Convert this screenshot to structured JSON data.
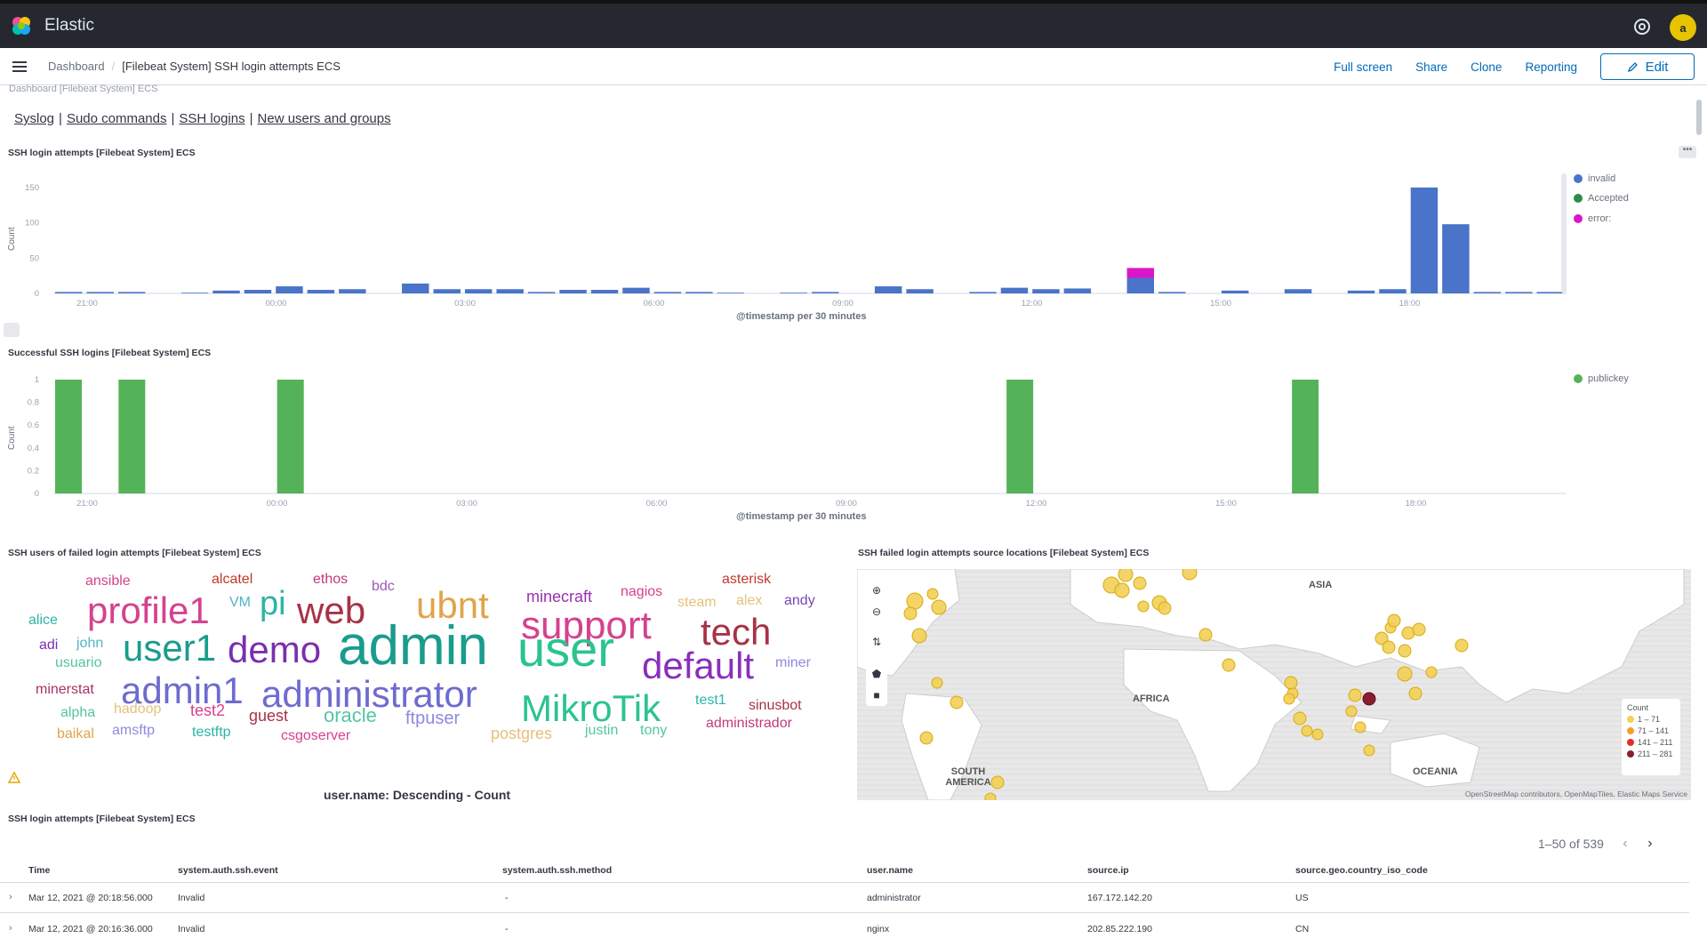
{
  "app": {
    "brand": "Elastic",
    "avatar_letter": "a",
    "accent": "#006bb8"
  },
  "breadcrumbs": {
    "root": "Dashboard",
    "current": "[Filebeat System] SSH login attempts ECS"
  },
  "actions": {
    "full_screen": "Full screen",
    "share": "Share",
    "clone": "Clone",
    "reporting": "Reporting",
    "edit": "Edit"
  },
  "faded_header": "Dashboard [Filebeat System] ECS",
  "quick_links": [
    "Syslog",
    "Sudo commands",
    "SSH logins",
    "New users and groups"
  ],
  "panels": {
    "attempts": {
      "title": "SSH login attempts [Filebeat System] ECS",
      "xlabel": "@timestamp per 30 minutes",
      "ylabel": "Count",
      "legend": [
        {
          "name": "invalid",
          "color": "#4a74c9"
        },
        {
          "name": "Accepted",
          "color": "#2e8b47"
        },
        {
          "name": "error:",
          "color": "#d916c8"
        }
      ]
    },
    "successful": {
      "title": "Successful SSH logins [Filebeat System] ECS",
      "xlabel": "@timestamp per 30 minutes",
      "ylabel": "Count",
      "legend": [
        {
          "name": "publickey",
          "color": "#54b358"
        }
      ]
    },
    "cloud": {
      "title": "SSH users of failed login attempts [Filebeat System] ECS",
      "caption": "user.name: Descending - Count"
    },
    "map": {
      "title": "SSH failed login attempts source locations [Filebeat System] ECS",
      "labels": [
        "ASIA",
        "AFRICA",
        "SOUTH AMERICA",
        "OCEANIA"
      ],
      "legend_title": "Count",
      "legend": [
        {
          "label": "1 – 71",
          "color": "#f6d155"
        },
        {
          "label": "71 – 141",
          "color": "#f2a02a"
        },
        {
          "label": "141 – 211",
          "color": "#e0312b"
        },
        {
          "label": "211 – 281",
          "color": "#8c1d2e"
        }
      ],
      "attribution": "OpenStreetMap contributors, OpenMapTiles, Elastic Maps Service"
    },
    "table": {
      "title": "SSH login attempts [Filebeat System] ECS",
      "pagination": "1–50 of 539",
      "columns": [
        "Time",
        "system.auth.ssh.event",
        "system.auth.ssh.method",
        "user.name",
        "source.ip",
        "source.geo.country_iso_code"
      ],
      "rows": [
        [
          "Mar 12, 2021 @ 20:18:56.000",
          "Invalid",
          "-",
          "administrator",
          "167.172.142.20",
          "US"
        ],
        [
          "Mar 12, 2021 @ 20:16:36.000",
          "Invalid",
          "-",
          "nginx",
          "202.85.222.190",
          "CN"
        ]
      ]
    }
  },
  "chart_data": [
    {
      "type": "bar",
      "title": "SSH login attempts [Filebeat System] ECS",
      "xlabel": "@timestamp per 30 minutes",
      "ylabel": "Count",
      "ylim": [
        0,
        170
      ],
      "y_ticks": [
        "0",
        "50",
        "100",
        "150"
      ],
      "x_ticks": [
        "21:00",
        "00:00",
        "03:00",
        "06:00",
        "09:00",
        "12:00",
        "15:00",
        "18:00"
      ],
      "series": [
        {
          "name": "invalid",
          "values": [
            2,
            2,
            2,
            0,
            1,
            4,
            5,
            10,
            5,
            6,
            0,
            14,
            6,
            6,
            6,
            2,
            5,
            5,
            8,
            2,
            2,
            1,
            0,
            1,
            2,
            0,
            10,
            6,
            0,
            2,
            8,
            6,
            7,
            0,
            22,
            2,
            0,
            4,
            0,
            6,
            0,
            4,
            6,
            150,
            98,
            2,
            2,
            2
          ]
        },
        {
          "name": "error:",
          "values": [
            0,
            0,
            0,
            0,
            0,
            0,
            0,
            0,
            0,
            0,
            0,
            0,
            0,
            0,
            0,
            0,
            0,
            0,
            0,
            0,
            0,
            0,
            0,
            0,
            0,
            0,
            0,
            0,
            0,
            0,
            0,
            0,
            0,
            0,
            14,
            0,
            0,
            0,
            0,
            0,
            0,
            0,
            0,
            0,
            0,
            0,
            0,
            0
          ]
        }
      ]
    },
    {
      "type": "bar",
      "title": "Successful SSH logins [Filebeat System] ECS",
      "xlabel": "@timestamp per 30 minutes",
      "ylabel": "Count",
      "ylim": [
        0,
        1
      ],
      "y_ticks": [
        "0",
        "0.2",
        "0.4",
        "0.6",
        "0.8",
        "1"
      ],
      "x_ticks": [
        "21:00",
        "00:00",
        "03:00",
        "06:00",
        "09:00",
        "12:00",
        "15:00",
        "18:00"
      ],
      "series": [
        {
          "name": "publickey",
          "positions": [
            0,
            2,
            7,
            30,
            39
          ],
          "values": [
            1,
            1,
            1,
            1,
            1
          ]
        }
      ]
    }
  ],
  "cloud_words": [
    {
      "w": "ansible",
      "c": "#d6418f",
      "s": 16
    },
    {
      "w": "alcatel",
      "c": "#c0392b",
      "s": 16
    },
    {
      "w": "ethos",
      "c": "#c0397a",
      "s": 16
    },
    {
      "w": "bdc",
      "c": "#9b59b6",
      "s": 16
    },
    {
      "w": "asterisk",
      "c": "#c0392b",
      "s": 16
    },
    {
      "w": "profile1",
      "c": "#d6418f",
      "s": 42
    },
    {
      "w": "VM",
      "c": "#54b3c7",
      "s": 16
    },
    {
      "w": "pi",
      "c": "#2bb5a5",
      "s": 38
    },
    {
      "w": "web",
      "c": "#a83246",
      "s": 42
    },
    {
      "w": "ubnt",
      "c": "#e0a54a",
      "s": 42
    },
    {
      "w": "minecraft",
      "c": "#9b2fae",
      "s": 18
    },
    {
      "w": "nagios",
      "c": "#d6418f",
      "s": 16
    },
    {
      "w": "steam",
      "c": "#e5c07a",
      "s": 16
    },
    {
      "w": "alex",
      "c": "#e5c07a",
      "s": 16
    },
    {
      "w": "andy",
      "c": "#7a46b6",
      "s": 16
    },
    {
      "w": "alice",
      "c": "#2bb5a5",
      "s": 16
    },
    {
      "w": "support",
      "c": "#d6418f",
      "s": 44
    },
    {
      "w": "tech",
      "c": "#a83246",
      "s": 42
    },
    {
      "w": "adi",
      "c": "#7a2fae",
      "s": 16
    },
    {
      "w": "john",
      "c": "#54b3c7",
      "s": 16
    },
    {
      "w": "user1",
      "c": "#1a9c8c",
      "s": 42
    },
    {
      "w": "demo",
      "c": "#7a2fae",
      "s": 42
    },
    {
      "w": "admin",
      "c": "#1a9c8c",
      "s": 62
    },
    {
      "w": "user",
      "c": "#2ac48f",
      "s": 56
    },
    {
      "w": "default",
      "c": "#8a2fbd",
      "s": 42
    },
    {
      "w": "miner",
      "c": "#8e89e0",
      "s": 16
    },
    {
      "w": "usuario",
      "c": "#54c5a5",
      "s": 16
    },
    {
      "w": "minerstat",
      "c": "#a83266",
      "s": 16
    },
    {
      "w": "admin1",
      "c": "#6e6bcf",
      "s": 42
    },
    {
      "w": "administrator",
      "c": "#6e6bcf",
      "s": 42
    },
    {
      "w": "MikroTik",
      "c": "#2ac48f",
      "s": 42
    },
    {
      "w": "test1",
      "c": "#2bb5a5",
      "s": 16
    },
    {
      "w": "sinusbot",
      "c": "#a83246",
      "s": 16
    },
    {
      "w": "alpha",
      "c": "#54c5a5",
      "s": 16
    },
    {
      "w": "hadoop",
      "c": "#e5c07a",
      "s": 16
    },
    {
      "w": "test2",
      "c": "#d6418f",
      "s": 18
    },
    {
      "w": "guest",
      "c": "#a83246",
      "s": 18
    },
    {
      "w": "oracle",
      "c": "#54c5a5",
      "s": 22
    },
    {
      "w": "ftpuser",
      "c": "#8e89e0",
      "s": 20
    },
    {
      "w": "baikal",
      "c": "#e0a54a",
      "s": 16
    },
    {
      "w": "amsftp",
      "c": "#8e89e0",
      "s": 16
    },
    {
      "w": "testftp",
      "c": "#2bb5a5",
      "s": 16
    },
    {
      "w": "csgoserver",
      "c": "#d6418f",
      "s": 16
    },
    {
      "w": "postgres",
      "c": "#e5c07a",
      "s": 18
    },
    {
      "w": "justin",
      "c": "#54c5a5",
      "s": 16
    },
    {
      "w": "tony",
      "c": "#54c5a5",
      "s": 16
    },
    {
      "w": "administrador",
      "c": "#c0397a",
      "s": 16
    }
  ]
}
